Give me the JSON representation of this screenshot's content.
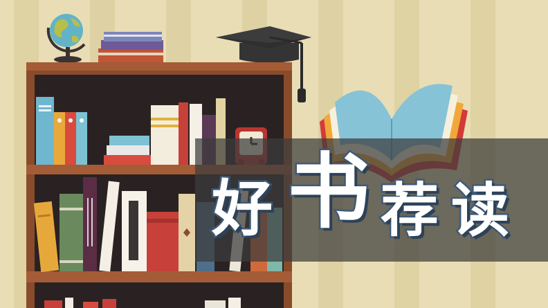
{
  "title": {
    "chars": [
      "好",
      "书",
      "荐",
      "读"
    ]
  },
  "colors": {
    "wall": "#e9ddb5",
    "wall_stripe": "#dccf9f",
    "shelf_wood": "#8a4b2b",
    "shelf_inside": "#2a2222",
    "banner": "#3b3b3b",
    "title_fill": "#ffffff",
    "title_outline": "#3f5a78"
  },
  "icons": {
    "globe": "globe-icon",
    "graduation_cap": "graduation-cap-icon",
    "open_book": "open-book-icon",
    "clock": "clock-icon",
    "book_stack": "book-stack-icon"
  }
}
